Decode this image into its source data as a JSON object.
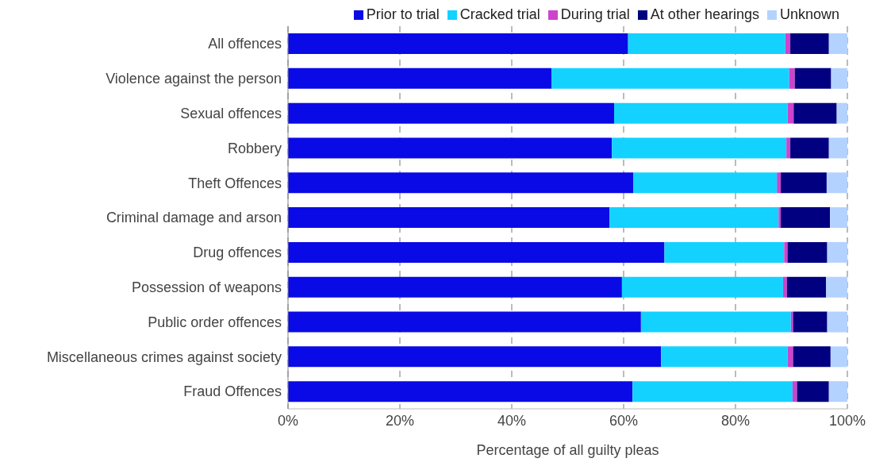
{
  "chart_data": {
    "type": "bar",
    "orientation": "horizontal",
    "stacked": true,
    "xlabel": "Percentage of all guilty pleas",
    "categories": [
      "All offences",
      "Violence against the person",
      "Sexual offences",
      "Robbery",
      "Theft Offences",
      "Criminal damage and arson",
      "Drug offences",
      "Possession of weapons",
      "Public order offences",
      "Miscellaneous crimes against society",
      "Fraud Offences"
    ],
    "series": [
      {
        "name": "Prior to trial",
        "color": "#0a0ae6",
        "values": [
          60.8,
          47.1,
          58.3,
          57.9,
          61.7,
          57.5,
          67.3,
          59.7,
          63.1,
          66.7,
          61.6
        ]
      },
      {
        "name": "Cracked trial",
        "color": "#14d2ff",
        "values": [
          28.1,
          42.5,
          31.0,
          31.2,
          25.7,
          30.2,
          21.4,
          28.8,
          26.8,
          22.6,
          28.6
        ]
      },
      {
        "name": "During trial",
        "color": "#cc44cc",
        "values": [
          0.9,
          1.0,
          1.1,
          0.7,
          0.7,
          0.4,
          0.6,
          0.7,
          0.4,
          1.0,
          0.8
        ]
      },
      {
        "name": "At other hearings",
        "color": "#000080",
        "values": [
          6.9,
          6.5,
          7.7,
          6.9,
          8.2,
          8.8,
          7.1,
          7.0,
          6.1,
          6.7,
          5.7
        ]
      },
      {
        "name": "Unknown",
        "color": "#b4d2ff",
        "values": [
          3.3,
          2.9,
          1.9,
          3.3,
          3.7,
          3.1,
          3.6,
          3.8,
          3.6,
          3.0,
          3.3
        ]
      }
    ],
    "xlim": [
      0,
      100
    ],
    "xticks": [
      {
        "value": 0,
        "label": "0%"
      },
      {
        "value": 20,
        "label": "20%"
      },
      {
        "value": 40,
        "label": "40%"
      },
      {
        "value": 60,
        "label": "60%"
      },
      {
        "value": 80,
        "label": "80%"
      },
      {
        "value": 100,
        "label": "100%"
      }
    ],
    "grid": "x",
    "legend": "top right"
  }
}
